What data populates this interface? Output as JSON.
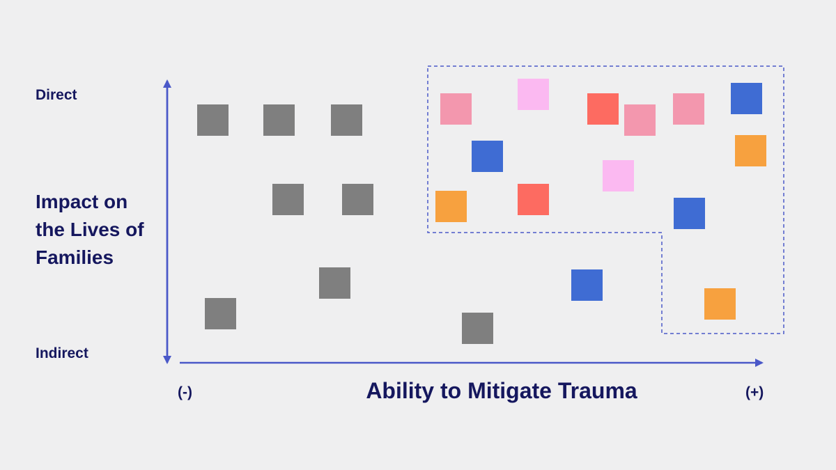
{
  "y_axis": {
    "top_label": "Direct",
    "bottom_label": "Indirect",
    "title_lines": [
      "Impact on",
      "the Lives of",
      "Families"
    ]
  },
  "x_axis": {
    "title": "Ability to Mitigate Trauma",
    "min_label": "(-)",
    "max_label": "(+)"
  },
  "colors": {
    "axis": "#4a58c8",
    "gray": "#7f7f7f",
    "pink": "#f397ae",
    "light_pink": "#fbb9f1",
    "red": "#fd6b61",
    "blue": "#3f6cd3",
    "orange": "#f7a13f",
    "highlight_border": "#4a58c8"
  },
  "squares": [
    {
      "name": "gray-square",
      "color": "gray",
      "in_highlight": false
    },
    {
      "name": "gray-square",
      "color": "gray",
      "in_highlight": false
    },
    {
      "name": "gray-square",
      "color": "gray",
      "in_highlight": false
    },
    {
      "name": "gray-square",
      "color": "gray",
      "in_highlight": false
    },
    {
      "name": "gray-square",
      "color": "gray",
      "in_highlight": false
    },
    {
      "name": "gray-square",
      "color": "gray",
      "in_highlight": false
    },
    {
      "name": "gray-square",
      "color": "gray",
      "in_highlight": false
    },
    {
      "name": "gray-square",
      "color": "gray",
      "in_highlight": false
    },
    {
      "name": "pink-square",
      "color": "pink",
      "in_highlight": true
    },
    {
      "name": "light-pink-square",
      "color": "light_pink",
      "in_highlight": true
    },
    {
      "name": "red-square",
      "color": "red",
      "in_highlight": true
    },
    {
      "name": "pink-square",
      "color": "pink",
      "in_highlight": true
    },
    {
      "name": "pink-square",
      "color": "pink",
      "in_highlight": true
    },
    {
      "name": "blue-square",
      "color": "blue",
      "in_highlight": true
    },
    {
      "name": "blue-square",
      "color": "blue",
      "in_highlight": true
    },
    {
      "name": "orange-square",
      "color": "orange",
      "in_highlight": true
    },
    {
      "name": "light-pink-square",
      "color": "light_pink",
      "in_highlight": true
    },
    {
      "name": "orange-square",
      "color": "orange",
      "in_highlight": true
    },
    {
      "name": "red-square",
      "color": "red",
      "in_highlight": true
    },
    {
      "name": "blue-square",
      "color": "blue",
      "in_highlight": true
    },
    {
      "name": "blue-square",
      "color": "blue",
      "in_highlight": false
    },
    {
      "name": "orange-square",
      "color": "orange",
      "in_highlight": true
    }
  ]
}
